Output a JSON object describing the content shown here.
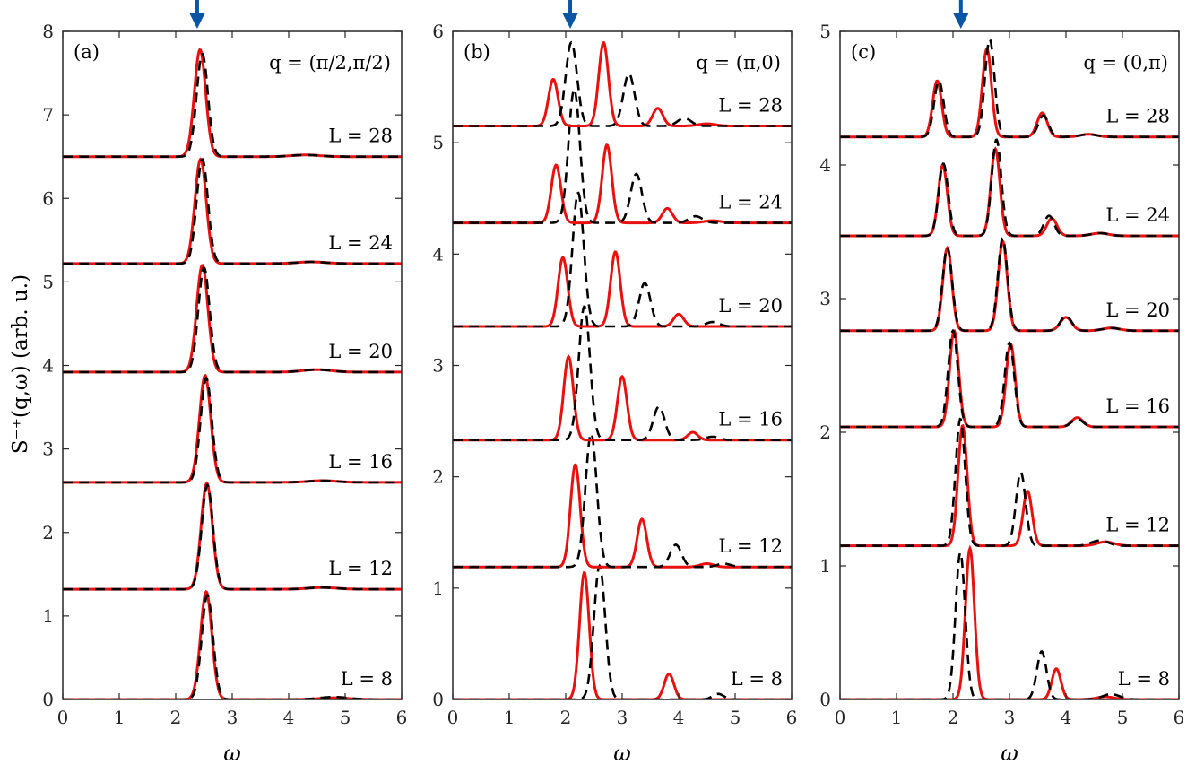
{
  "ylabel": "S⁻⁺(q,ω) (arb. u.)",
  "arrow_color": "#0b55a5",
  "red_color": "#e8110f",
  "black_color": "#000000",
  "chart_data": [
    {
      "type": "line",
      "panel": "(a)",
      "q_label": "q = (π/2,π/2)",
      "xlabel": "ω",
      "xlim": [
        0,
        6
      ],
      "ylim": [
        0,
        8
      ],
      "xticks": [
        0,
        1,
        2,
        3,
        4,
        5,
        6
      ],
      "yticks": [
        0,
        1,
        2,
        3,
        4,
        5,
        6,
        7,
        8
      ],
      "arrow_x": 2.38,
      "grid": false,
      "series": [
        {
          "L": 8,
          "label": "L = 8",
          "baseline": 0.0,
          "red": [
            [
              2.54,
              1.29,
              0.1
            ],
            [
              4.8,
              0.02,
              0.25
            ]
          ],
          "black": [
            [
              2.56,
              1.25,
              0.1
            ],
            [
              4.8,
              0.03,
              0.25
            ]
          ]
        },
        {
          "L": 12,
          "label": "L = 12",
          "baseline": 1.32,
          "red": [
            [
              2.55,
              1.27,
              0.1
            ],
            [
              4.6,
              0.02,
              0.25
            ]
          ],
          "black": [
            [
              2.56,
              1.25,
              0.1
            ],
            [
              4.6,
              0.02,
              0.25
            ]
          ]
        },
        {
          "L": 16,
          "label": "L = 16",
          "baseline": 2.6,
          "red": [
            [
              2.52,
              1.28,
              0.1
            ],
            [
              4.6,
              0.02,
              0.25
            ]
          ],
          "black": [
            [
              2.54,
              1.25,
              0.1
            ],
            [
              4.6,
              0.02,
              0.25
            ]
          ]
        },
        {
          "L": 20,
          "label": "L = 20",
          "baseline": 3.92,
          "red": [
            [
              2.47,
              1.28,
              0.1
            ],
            [
              4.5,
              0.03,
              0.25
            ]
          ],
          "black": [
            [
              2.5,
              1.25,
              0.1
            ],
            [
              4.5,
              0.03,
              0.25
            ]
          ]
        },
        {
          "L": 24,
          "label": "L = 24",
          "baseline": 5.22,
          "red": [
            [
              2.44,
              1.25,
              0.1
            ],
            [
              4.4,
              0.02,
              0.25
            ]
          ],
          "black": [
            [
              2.47,
              1.25,
              0.1
            ],
            [
              4.4,
              0.02,
              0.25
            ]
          ]
        },
        {
          "L": 28,
          "label": "L = 28",
          "baseline": 6.5,
          "red": [
            [
              2.43,
              1.28,
              0.1
            ],
            [
              4.3,
              0.02,
              0.25
            ]
          ],
          "black": [
            [
              2.47,
              1.23,
              0.1
            ],
            [
              4.3,
              0.02,
              0.25
            ]
          ]
        }
      ]
    },
    {
      "type": "line",
      "panel": "(b)",
      "q_label": "q = (π,0)",
      "xlabel": "ω",
      "xlim": [
        0,
        6
      ],
      "ylim": [
        0,
        6
      ],
      "xticks": [
        0,
        1,
        2,
        3,
        4,
        5,
        6
      ],
      "yticks": [
        0,
        1,
        2,
        3,
        4,
        5,
        6
      ],
      "arrow_x": 2.08,
      "grid": false,
      "series": [
        {
          "L": 8,
          "label": "L = 8",
          "baseline": 0.0,
          "red": [
            [
              2.33,
              1.14,
              0.085
            ],
            [
              3.83,
              0.23,
              0.085
            ]
          ],
          "black": [
            [
              2.6,
              1.2,
              0.1
            ],
            [
              4.7,
              0.05,
              0.1
            ]
          ]
        },
        {
          "L": 12,
          "label": "L = 12",
          "baseline": 1.19,
          "red": [
            [
              2.17,
              0.92,
              0.085
            ],
            [
              3.35,
              0.43,
              0.085
            ],
            [
              4.5,
              0.03,
              0.12
            ]
          ],
          "black": [
            [
              2.45,
              1.2,
              0.1
            ],
            [
              3.95,
              0.2,
              0.1
            ],
            [
              4.8,
              0.03,
              0.12
            ]
          ]
        },
        {
          "L": 16,
          "label": "L = 16",
          "baseline": 2.33,
          "red": [
            [
              2.05,
              0.75,
              0.085
            ],
            [
              3.0,
              0.57,
              0.085
            ],
            [
              4.25,
              0.07,
              0.09
            ]
          ],
          "black": [
            [
              2.33,
              1.2,
              0.1
            ],
            [
              3.65,
              0.3,
              0.1
            ],
            [
              4.6,
              0.03,
              0.12
            ]
          ]
        },
        {
          "L": 20,
          "label": "L = 20",
          "baseline": 3.35,
          "red": [
            [
              1.95,
              0.62,
              0.085
            ],
            [
              2.88,
              0.67,
              0.085
            ],
            [
              4.0,
              0.11,
              0.09
            ]
          ],
          "black": [
            [
              2.22,
              1.2,
              0.1
            ],
            [
              3.4,
              0.39,
              0.1
            ],
            [
              4.6,
              0.04,
              0.12
            ]
          ]
        },
        {
          "L": 24,
          "label": "L = 24",
          "baseline": 4.28,
          "red": [
            [
              1.83,
              0.52,
              0.085
            ],
            [
              2.73,
              0.7,
              0.085
            ],
            [
              3.8,
              0.13,
              0.09
            ],
            [
              4.6,
              0.02,
              0.15
            ]
          ],
          "black": [
            [
              2.15,
              1.2,
              0.1
            ],
            [
              3.25,
              0.44,
              0.1
            ],
            [
              4.3,
              0.06,
              0.12
            ]
          ]
        },
        {
          "L": 28,
          "label": "L = 28",
          "baseline": 5.15,
          "red": [
            [
              1.78,
              0.42,
              0.085
            ],
            [
              2.67,
              0.75,
              0.085
            ],
            [
              3.63,
              0.16,
              0.09
            ],
            [
              4.5,
              0.02,
              0.15
            ]
          ],
          "black": [
            [
              2.1,
              0.75,
              0.1
            ],
            [
              3.12,
              0.47,
              0.1
            ],
            [
              4.1,
              0.07,
              0.12
            ]
          ]
        }
      ]
    },
    {
      "type": "line",
      "panel": "(c)",
      "q_label": "q = (0,π)",
      "xlabel": "ω",
      "xlim": [
        0,
        6
      ],
      "ylim": [
        0,
        5
      ],
      "xticks": [
        0,
        1,
        2,
        3,
        4,
        5,
        6
      ],
      "yticks": [
        0,
        1,
        2,
        3,
        4,
        5
      ],
      "arrow_x": 2.14,
      "grid": false,
      "series": [
        {
          "L": 8,
          "label": "L = 8",
          "baseline": 0.0,
          "red": [
            [
              2.3,
              1.13,
              0.08
            ],
            [
              3.83,
              0.23,
              0.08
            ],
            [
              4.7,
              0.02,
              0.15
            ]
          ],
          "black": [
            [
              2.13,
              1.1,
              0.085
            ],
            [
              3.57,
              0.36,
              0.085
            ],
            [
              4.8,
              0.04,
              0.15
            ]
          ]
        },
        {
          "L": 12,
          "label": "L = 12",
          "baseline": 1.15,
          "red": [
            [
              2.17,
              0.9,
              0.08
            ],
            [
              3.32,
              0.41,
              0.08
            ],
            [
              4.7,
              0.03,
              0.15
            ]
          ],
          "black": [
            [
              2.13,
              0.95,
              0.085
            ],
            [
              3.2,
              0.55,
              0.085
            ],
            [
              4.6,
              0.04,
              0.15
            ]
          ]
        },
        {
          "L": 16,
          "label": "L = 16",
          "baseline": 2.04,
          "red": [
            [
              2.02,
              0.72,
              0.08
            ],
            [
              3.02,
              0.62,
              0.08
            ],
            [
              4.2,
              0.07,
              0.1
            ]
          ],
          "black": [
            [
              2.0,
              0.72,
              0.085
            ],
            [
              3.0,
              0.63,
              0.085
            ],
            [
              4.2,
              0.06,
              0.1
            ]
          ]
        },
        {
          "L": 20,
          "label": "L = 20",
          "baseline": 2.76,
          "red": [
            [
              1.9,
              0.62,
              0.08
            ],
            [
              2.88,
              0.67,
              0.08
            ],
            [
              4.0,
              0.1,
              0.1
            ],
            [
              4.8,
              0.02,
              0.15
            ]
          ],
          "black": [
            [
              1.9,
              0.62,
              0.085
            ],
            [
              2.88,
              0.69,
              0.085
            ],
            [
              4.0,
              0.11,
              0.1
            ],
            [
              4.8,
              0.02,
              0.15
            ]
          ]
        },
        {
          "L": 24,
          "label": "L = 24",
          "baseline": 3.47,
          "red": [
            [
              1.82,
              0.53,
              0.08
            ],
            [
              2.75,
              0.65,
              0.08
            ],
            [
              3.75,
              0.13,
              0.09
            ],
            [
              4.6,
              0.02,
              0.15
            ]
          ],
          "black": [
            [
              1.83,
              0.54,
              0.085
            ],
            [
              2.77,
              0.72,
              0.085
            ],
            [
              3.7,
              0.15,
              0.09
            ],
            [
              4.6,
              0.02,
              0.15
            ]
          ]
        },
        {
          "L": 28,
          "label": "L = 28",
          "baseline": 4.21,
          "red": [
            [
              1.72,
              0.42,
              0.08
            ],
            [
              2.6,
              0.66,
              0.08
            ],
            [
              3.58,
              0.18,
              0.09
            ],
            [
              4.4,
              0.02,
              0.15
            ]
          ],
          "black": [
            [
              1.75,
              0.42,
              0.085
            ],
            [
              2.65,
              0.73,
              0.085
            ],
            [
              3.6,
              0.16,
              0.09
            ],
            [
              4.4,
              0.02,
              0.15
            ]
          ]
        }
      ]
    }
  ]
}
